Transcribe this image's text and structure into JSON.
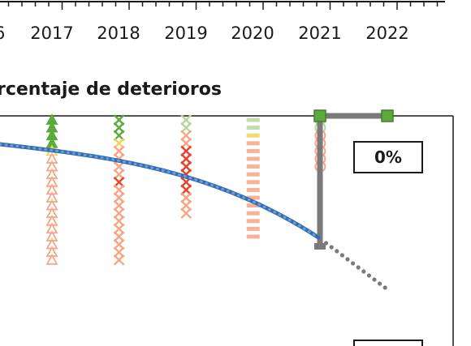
{
  "chart_data": {
    "type": "scatter",
    "title": "rcentaje de deterioros",
    "x_tick_labels": [
      "6",
      "2017",
      "2018",
      "2019",
      "2020",
      "2021",
      "2022"
    ],
    "annotation": "0%",
    "colors": {
      "good": "#5aaa3c",
      "light_good": "#b6d8a0",
      "yellow": "#f2d35a",
      "orange": "#f7a684",
      "red": "#e8402a",
      "trend": "#2e6fb6",
      "gray": "#7a7a7a"
    },
    "series": [
      {
        "x": 2017,
        "marker": "triangle",
        "markers": [
          "good",
          "good",
          "good",
          "good",
          "yellow",
          "orange",
          "orange",
          "orange",
          "orange",
          "orange",
          "orange",
          "orange",
          "orange",
          "orange",
          "orange",
          "orange",
          "orange",
          "orange",
          "orange"
        ]
      },
      {
        "x": 2018,
        "marker": "x",
        "markers": [
          "good",
          "good",
          "good",
          "yellow",
          "orange",
          "orange",
          "orange",
          "orange",
          "red",
          "orange",
          "orange",
          "orange",
          "orange",
          "orange",
          "orange",
          "orange",
          "orange",
          "orange",
          "orange"
        ]
      },
      {
        "x": 2019,
        "marker": "x",
        "markers": [
          "light_good",
          "light_good",
          "orange",
          "orange",
          "red",
          "red",
          "red",
          "red",
          "red",
          "red",
          "orange",
          "orange",
          "orange"
        ]
      },
      {
        "x": 2020,
        "marker": "dash",
        "markers": [
          "light_good",
          "light_good",
          "yellow",
          "orange",
          "orange",
          "orange",
          "orange",
          "orange",
          "orange",
          "orange",
          "orange",
          "orange",
          "orange",
          "orange",
          "orange",
          "orange"
        ]
      },
      {
        "x": 2021,
        "marker": "circle",
        "markers": [
          "light_good",
          "light_good",
          "orange",
          "orange",
          "orange",
          "orange",
          "orange"
        ]
      }
    ],
    "trend_curve": "exponential-decline",
    "target_value": "0%"
  }
}
